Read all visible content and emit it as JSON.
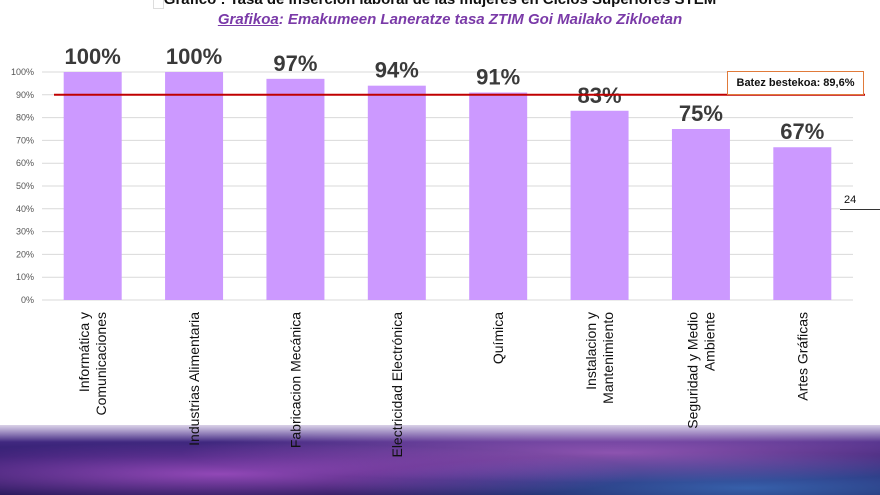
{
  "header": {
    "title": "Gráfico : Tasa de inserción laboral de las mujeres en Ciclos Superiores STEM",
    "subtitle_prefix": "Grafikoa",
    "subtitle_rest": ": Emakumeen Laneratze tasa ZTIM Goi Mailako Zikloetan"
  },
  "average": {
    "label": "Batez bestekoa: 89,6%",
    "value": 89.6
  },
  "page_number": "24",
  "colors": {
    "bar": "#cc99ff",
    "average_line": "#c00000",
    "grid": "#d9d9d9",
    "title": "#111111",
    "subtitle": "#7a3aa8",
    "average_box_border": "#e07a3a"
  },
  "chart_data": {
    "type": "bar",
    "categories": [
      [
        "Informática y",
        "Comunicaciones"
      ],
      [
        "Industrias Alimentaria"
      ],
      [
        "Fabricacion Mecánica"
      ],
      [
        "Electricidad Electrónica"
      ],
      [
        "Química"
      ],
      [
        "Instalacion y",
        "Mantenimiento"
      ],
      [
        "Seguridad y Medio",
        "Ambiente"
      ],
      [
        "Artes Gráficas"
      ]
    ],
    "values": [
      100,
      100,
      97,
      94,
      91,
      83,
      75,
      67
    ],
    "value_labels": [
      "100%",
      "100%",
      "97%",
      "94%",
      "91%",
      "83%",
      "75%",
      "67%"
    ],
    "y_ticks": [
      "0%",
      "10%",
      "20%",
      "30%",
      "40%",
      "50%",
      "60%",
      "70%",
      "80%",
      "90%",
      "100%"
    ],
    "ylim": [
      0,
      100
    ],
    "grid": true,
    "reference_line": 89.6,
    "legend": "none"
  }
}
